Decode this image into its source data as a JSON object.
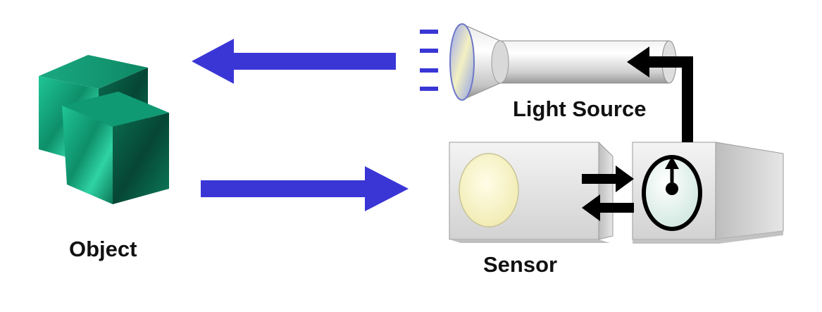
{
  "labels": {
    "object": "Object",
    "light_source": "Light Source",
    "sensor": "Sensor"
  },
  "colors": {
    "arrow_blue": "#3a36d6",
    "cube_green": "#13a27a",
    "cube_green_dark": "#05583f",
    "box_gray": "#d8d8d8",
    "black": "#000000"
  },
  "icons": {
    "object": "green-cubes-icon",
    "light_source": "flashlight-icon",
    "sensor": "sensor-box-icon",
    "timer": "clock-icon"
  }
}
